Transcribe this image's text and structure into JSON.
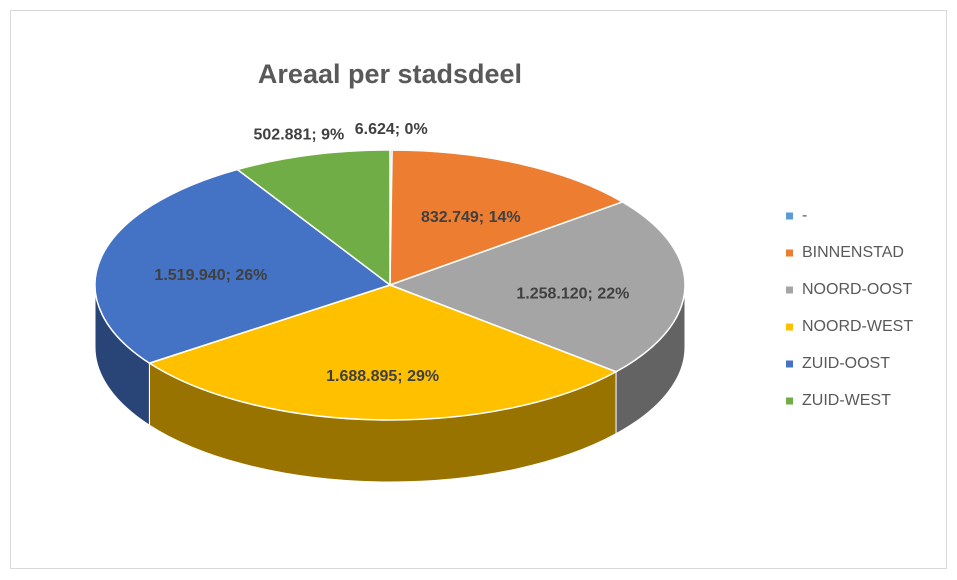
{
  "chart_data": {
    "type": "pie",
    "title": "Areaal per stadsdeel",
    "categories": [
      "-",
      "BINNENSTAD",
      "NOORD-OOST",
      "NOORD-WEST",
      "ZUID-OOST",
      "ZUID-WEST"
    ],
    "values": [
      6624,
      832749,
      1258120,
      1688895,
      1519940,
      502881
    ],
    "value_labels": [
      "6.624; 0%",
      "832.749; 14%",
      "1.258.120; 22%",
      "1.688.895; 29%",
      "1.519.940; 26%",
      "502.881; 9%"
    ],
    "colors": [
      "#5b9bd5",
      "#ed7d31",
      "#a5a5a5",
      "#ffc000",
      "#4472c4",
      "#70ad47"
    ],
    "legend": "right"
  }
}
